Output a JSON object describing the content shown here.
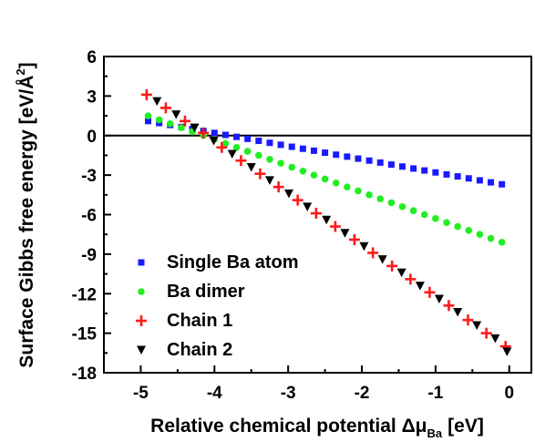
{
  "chart_data": {
    "type": "scatter",
    "xlabel_main": "Relative chemical potential Δμ",
    "xlabel_sub": "Ba",
    "xlabel_unit": "[eV]",
    "ylabel_main": "Surface Gibbs free energy [eV/Å",
    "ylabel_sup": "2",
    "ylabel_end": "]",
    "xlim": [
      -5.5,
      0.3
    ],
    "ylim": [
      -18,
      6
    ],
    "xticks": [
      -5,
      -4,
      -3,
      -2,
      -1,
      0
    ],
    "yticks": [
      6,
      3,
      0,
      -3,
      -6,
      -9,
      -12,
      -15,
      -18
    ],
    "zero_line": true,
    "grid": false,
    "legend_position": "bottom-left",
    "series": [
      {
        "name": "Single Ba atom",
        "marker": "square",
        "color": "#1a1aff",
        "x": [
          -4.9,
          -4.75,
          -4.6,
          -4.45,
          -4.3,
          -4.15,
          -4.0,
          -3.85,
          -3.7,
          -3.55,
          -3.4,
          -3.25,
          -3.1,
          -2.95,
          -2.8,
          -2.65,
          -2.5,
          -2.35,
          -2.2,
          -2.05,
          -1.9,
          -1.75,
          -1.6,
          -1.45,
          -1.3,
          -1.15,
          -1.0,
          -0.85,
          -0.7,
          -0.55,
          -0.4,
          -0.25,
          -0.1
        ],
        "y": [
          1.1,
          0.95,
          0.8,
          0.65,
          0.5,
          0.35,
          0.2,
          0.05,
          -0.1,
          -0.25,
          -0.4,
          -0.55,
          -0.7,
          -0.85,
          -1.0,
          -1.15,
          -1.3,
          -1.45,
          -1.6,
          -1.75,
          -1.9,
          -2.05,
          -2.2,
          -2.35,
          -2.5,
          -2.65,
          -2.8,
          -2.95,
          -3.1,
          -3.25,
          -3.4,
          -3.55,
          -3.7
        ]
      },
      {
        "name": "Ba dimer",
        "marker": "circle",
        "color": "#22ee22",
        "x": [
          -4.9,
          -4.75,
          -4.6,
          -4.45,
          -4.3,
          -4.15,
          -4.0,
          -3.85,
          -3.7,
          -3.55,
          -3.4,
          -3.25,
          -3.1,
          -2.95,
          -2.8,
          -2.65,
          -2.5,
          -2.35,
          -2.2,
          -2.05,
          -1.9,
          -1.75,
          -1.6,
          -1.45,
          -1.3,
          -1.15,
          -1.0,
          -0.85,
          -0.7,
          -0.55,
          -0.4,
          -0.25,
          -0.1
        ],
        "y": [
          1.5,
          1.2,
          0.9,
          0.6,
          0.3,
          0.0,
          -0.3,
          -0.6,
          -0.9,
          -1.2,
          -1.5,
          -1.8,
          -2.1,
          -2.4,
          -2.7,
          -3.0,
          -3.3,
          -3.6,
          -3.9,
          -4.2,
          -4.5,
          -4.8,
          -5.1,
          -5.4,
          -5.7,
          -6.0,
          -6.3,
          -6.6,
          -6.9,
          -7.2,
          -7.5,
          -7.8,
          -8.1
        ]
      },
      {
        "name": "Chain 1",
        "marker": "plus",
        "color": "#ff1a1a",
        "x": [
          -4.92,
          -4.66,
          -4.4,
          -4.15,
          -3.9,
          -3.64,
          -3.38,
          -3.13,
          -2.87,
          -2.62,
          -2.36,
          -2.1,
          -1.85,
          -1.59,
          -1.34,
          -1.08,
          -0.82,
          -0.56,
          -0.31,
          -0.05
        ],
        "y": [
          3.1,
          2.1,
          1.1,
          0.2,
          -0.9,
          -1.9,
          -2.9,
          -3.9,
          -4.9,
          -5.9,
          -6.9,
          -7.9,
          -8.9,
          -9.9,
          -10.9,
          -11.9,
          -12.9,
          -14.0,
          -15.0,
          -16.0
        ]
      },
      {
        "name": "Chain 2",
        "marker": "triangle-down",
        "color": "#000000",
        "x": [
          -4.78,
          -4.52,
          -4.27,
          -4.01,
          -3.76,
          -3.5,
          -3.25,
          -2.99,
          -2.74,
          -2.48,
          -2.23,
          -1.97,
          -1.72,
          -1.46,
          -1.21,
          -0.95,
          -0.7,
          -0.44,
          -0.19,
          -0.03
        ],
        "y": [
          2.6,
          1.6,
          0.6,
          -0.4,
          -1.4,
          -2.4,
          -3.4,
          -4.4,
          -5.4,
          -6.4,
          -7.4,
          -8.4,
          -9.4,
          -10.4,
          -11.4,
          -12.4,
          -13.4,
          -14.4,
          -15.4,
          -16.4
        ]
      }
    ]
  }
}
